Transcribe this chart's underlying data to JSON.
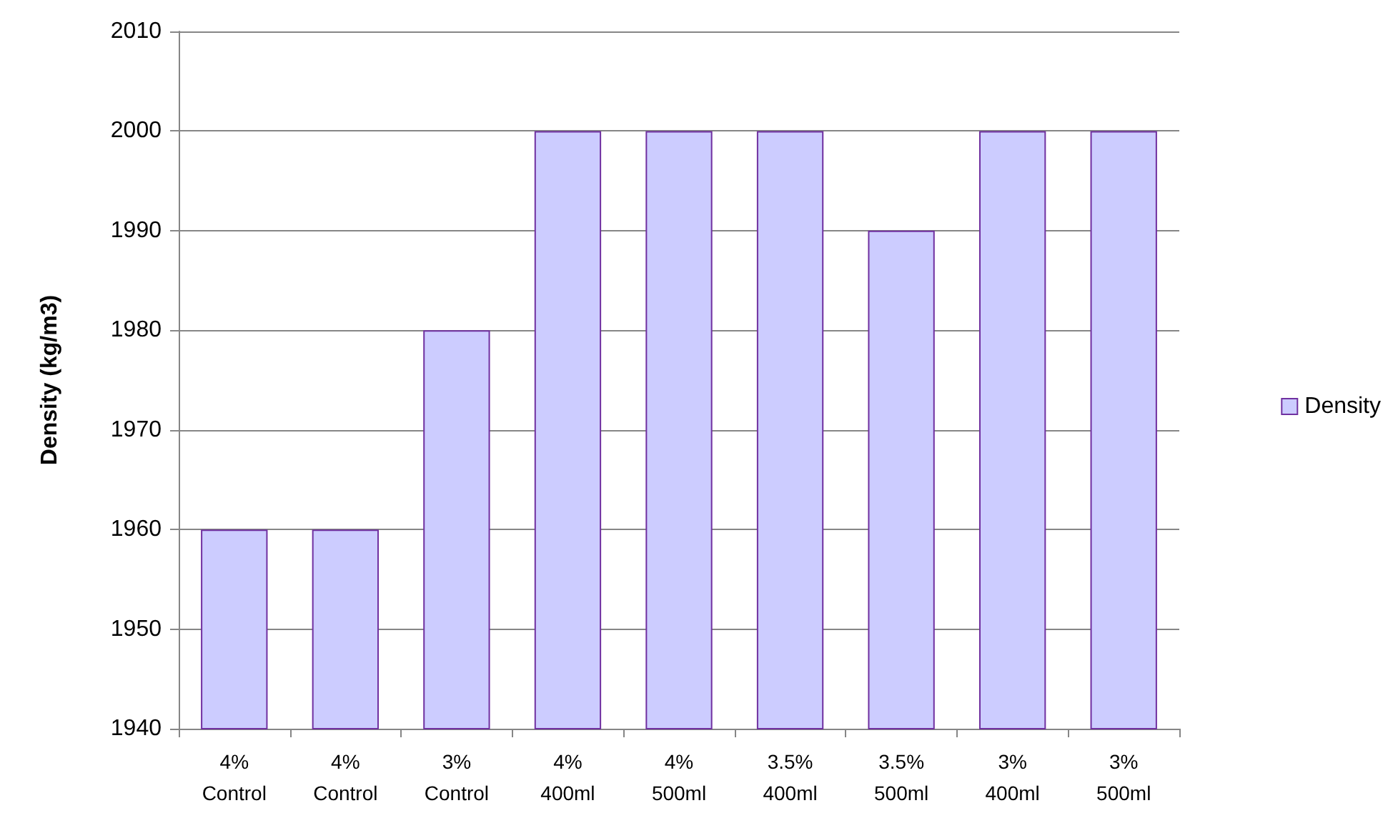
{
  "chart_data": {
    "type": "bar",
    "ylabel": "Density (kg/m3)",
    "categories": [
      "4%\nControl",
      "4%\nControl",
      "3%\nControl",
      "4%\n400ml",
      "4%\n500ml",
      "3.5%\n400ml",
      "3.5%\n500ml",
      "3%\n400ml",
      "3%\n500ml"
    ],
    "series": [
      {
        "name": "Density",
        "color": "#ccccff",
        "values": [
          1960,
          1960,
          1980,
          2000,
          2000,
          2000,
          1990,
          2000,
          2000
        ]
      }
    ],
    "ylim": [
      1940,
      2010
    ],
    "yticks": [
      1940,
      1950,
      1960,
      1970,
      1980,
      1990,
      2000,
      2010
    ],
    "grid": "y",
    "legend": "right"
  }
}
